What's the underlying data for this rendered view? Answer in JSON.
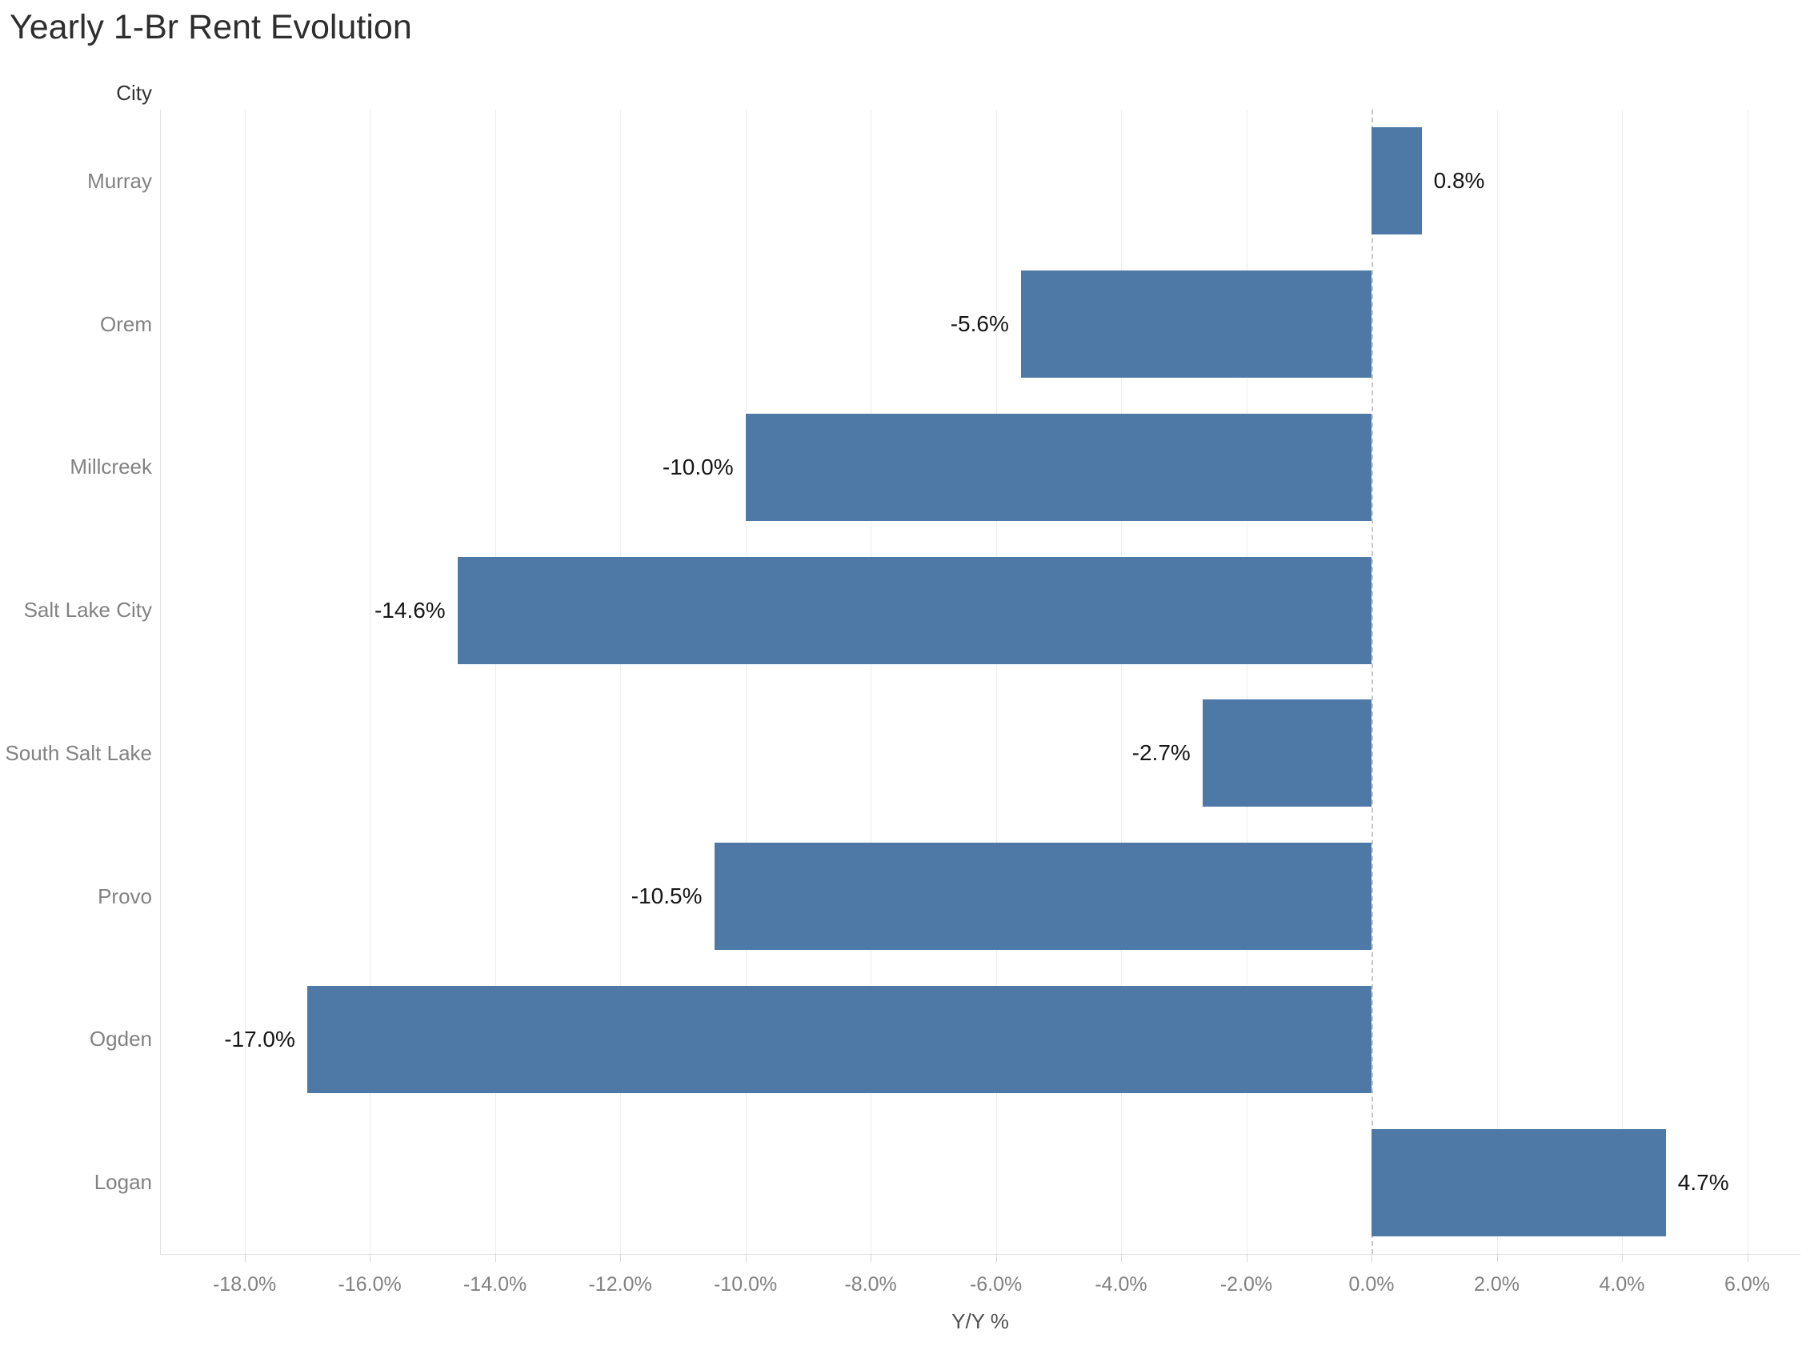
{
  "chart_data": {
    "type": "bar",
    "orientation": "horizontal",
    "title": "Yearly 1-Br Rent Evolution",
    "field_label": "City",
    "xlabel": "Y/Y %",
    "categories": [
      "Murray",
      "Orem",
      "Millcreek",
      "Salt Lake City",
      "South Salt Lake",
      "Provo",
      "Ogden",
      "Logan"
    ],
    "values": [
      0.8,
      -5.6,
      -10.0,
      -14.6,
      -2.7,
      -10.5,
      -17.0,
      4.7
    ],
    "value_labels": [
      "0.8%",
      "-5.6%",
      "-10.0%",
      "-14.6%",
      "-2.7%",
      "-10.5%",
      "-17.0%",
      "4.7%"
    ],
    "x_tick_values": [
      -18,
      -16,
      -14,
      -12,
      -10,
      -8,
      -6,
      -4,
      -2,
      0,
      2,
      4,
      6
    ],
    "x_tick_labels": [
      "-18.0%",
      "-16.0%",
      "-14.0%",
      "-12.0%",
      "-10.0%",
      "-8.0%",
      "-6.0%",
      "-4.0%",
      "-2.0%",
      "0.0%",
      "2.0%",
      "4.0%",
      "6.0%"
    ],
    "xlim": [
      -19.35,
      6.85
    ],
    "zero_line_value": 0,
    "grid": true,
    "legend": "none",
    "colors": {
      "bar": "#4e79a7",
      "title_text": "#2e2e2e",
      "field_label_text": "#333333",
      "axis_text": "#828282",
      "value_label_text": "#161616",
      "gridline": "#ededed",
      "axis_line": "#e0e0e0",
      "tick_mark": "#d7d7d7",
      "zero_line": "#c6c6c6",
      "background": "#ffffff"
    }
  }
}
